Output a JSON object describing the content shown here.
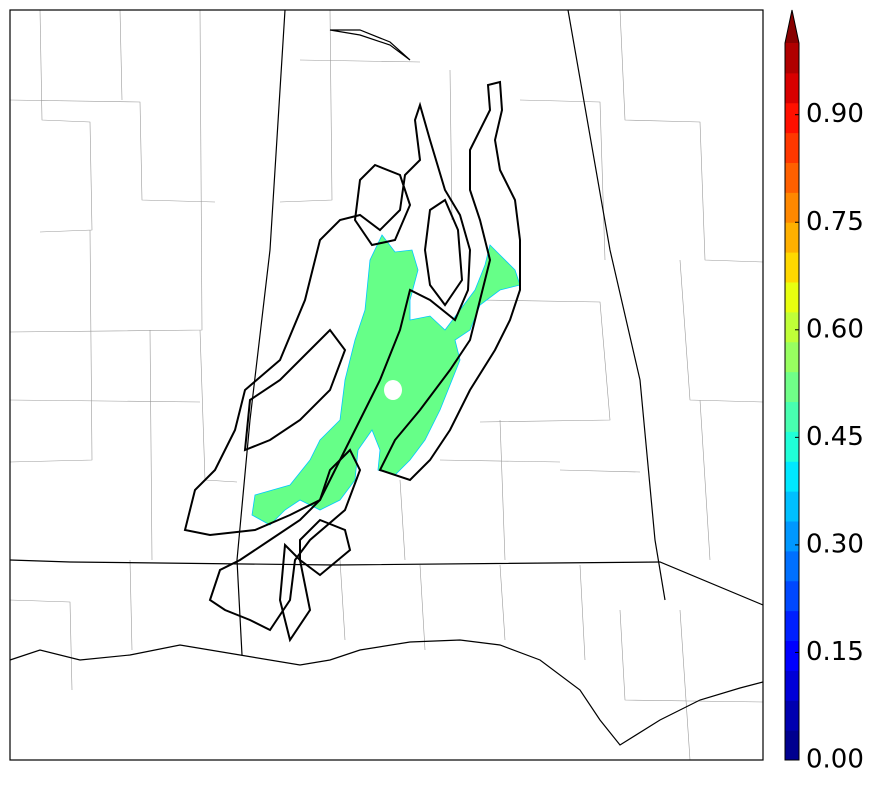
{
  "colorbar": {
    "range": [
      0,
      1
    ],
    "extend": "max",
    "colors": [
      "#00008f",
      "#0000b0",
      "#0000d8",
      "#0000ff",
      "#0020ff",
      "#0048ff",
      "#0070ff",
      "#0098ff",
      "#00c0ff",
      "#00e8ff",
      "#20ffd8",
      "#48ffb0",
      "#70ff88",
      "#98ff60",
      "#c0ff38",
      "#e8ff10",
      "#ffd800",
      "#ffb000",
      "#ff8800",
      "#ff6000",
      "#ff3800",
      "#ff1000",
      "#d80000",
      "#b00000",
      "#880000"
    ],
    "ticks": [
      {
        "value": 0,
        "label": "0.00"
      },
      {
        "value": 0.15,
        "label": "0.15"
      },
      {
        "value": 0.3,
        "label": "0.30"
      },
      {
        "value": 0.45,
        "label": "0.45"
      },
      {
        "value": 0.6,
        "label": "0.60"
      },
      {
        "value": 0.75,
        "label": "0.75"
      },
      {
        "value": 0.9,
        "label": "0.90"
      }
    ]
  }
}
